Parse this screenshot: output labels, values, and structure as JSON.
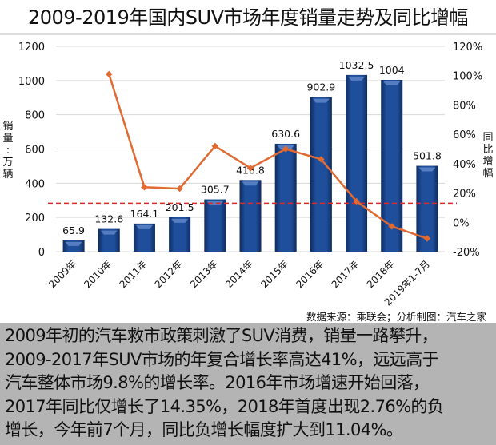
{
  "title": "2009-2019年国内SUV市场年度销量走势及同比增幅",
  "source": "数据来源：乘联会；分析制图：汽车之家",
  "note_lines": [
    "2009年初的汽车救市政策刺激了SUV消费，销量一路攀升，",
    "2009-2017年SUV市场的年复合增长率高达41%，远远高于",
    "汽车整体市场9.8%的增长率。2016年市场增速开始回落，",
    "2017年同比仅增长了14.35%，2018年首度出现2.76%的负",
    "增长，今年前7个月，同比负增长幅度扩大到11.04%。"
  ],
  "colors": {
    "bar": "#1f4e9a",
    "bar_dark": "#14356e",
    "line": "#e06a32",
    "dashed": "#d92b2b",
    "grid": "#d9d9d9",
    "note_bg": "#b4b4b4"
  },
  "chart_data": {
    "type": "bar+line",
    "title": "2009-2019年国内SUV市场年度销量走势及同比增幅",
    "categories": [
      "2009年",
      "2010年",
      "2011年",
      "2012年",
      "2013年",
      "2014年",
      "2015年",
      "2016年",
      "2017年",
      "2018年",
      "2019年1-7月"
    ],
    "series": [
      {
        "name": "销量",
        "type": "bar",
        "axis": "left",
        "values": [
          65.9,
          132.6,
          164.1,
          201.5,
          305.7,
          418.8,
          630.6,
          902.9,
          1032.5,
          1004,
          501.8
        ],
        "labels": [
          "65.9",
          "132.6",
          "164.1",
          "201.5",
          "305.7",
          "418.8",
          "630.6",
          "902.9",
          "1032.5",
          "1004",
          "501.8"
        ]
      },
      {
        "name": "同比增幅",
        "type": "line",
        "axis": "right",
        "values": [
          null,
          101,
          24,
          23,
          52,
          37,
          50,
          43,
          14.35,
          -2.76,
          -11.04
        ]
      }
    ],
    "reference_line": {
      "axis": "right",
      "value": 13,
      "style": "dashed",
      "color": "#d92b2b"
    },
    "ylabel": "销量：万辆",
    "y2label": "同比增幅",
    "ylim": [
      0,
      1200
    ],
    "yticks": [
      "0",
      "200",
      "400",
      "600",
      "800",
      "1000",
      "1200"
    ],
    "y2lim": [
      -20,
      120
    ],
    "y2ticks": [
      "-20%",
      "0%",
      "20%",
      "40%",
      "60%",
      "80%",
      "100%",
      "120%"
    ],
    "grid": true
  }
}
